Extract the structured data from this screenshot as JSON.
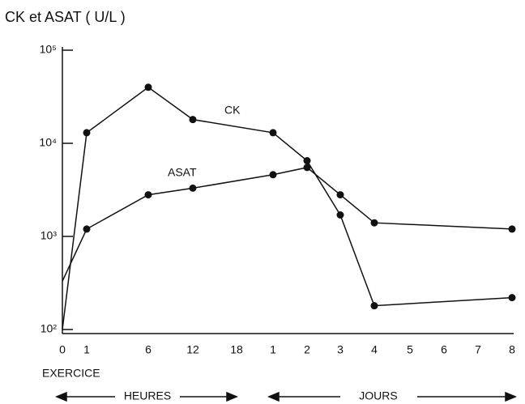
{
  "chart_data": {
    "type": "line",
    "title": "CK et ASAT ( U/L )",
    "categories": [
      "0",
      "1",
      "6",
      "12",
      "18",
      "1",
      "2",
      "3",
      "4",
      "5",
      "6",
      "7",
      "8"
    ],
    "series": [
      {
        "name": "CK",
        "color": "#111111",
        "values": [
          100,
          13000,
          40000,
          18000,
          null,
          13000,
          6500,
          1700,
          180,
          null,
          null,
          null,
          220
        ]
      },
      {
        "name": "ASAT",
        "color": "#111111",
        "values": [
          330,
          1200,
          2800,
          3300,
          null,
          4600,
          5500,
          2800,
          1400,
          null,
          null,
          null,
          1200
        ]
      }
    ],
    "log_scale": true,
    "ylim": [
      100,
      100000
    ],
    "yticks": [
      {
        "value": 100,
        "label": "10²"
      },
      {
        "value": 1000,
        "label": "10³"
      },
      {
        "value": 10000,
        "label": "10⁴"
      },
      {
        "value": 100000,
        "label": "10⁵"
      }
    ],
    "annotations": {
      "start": "EXERCICE",
      "hours": "HEURES",
      "days": "JOURS"
    }
  }
}
